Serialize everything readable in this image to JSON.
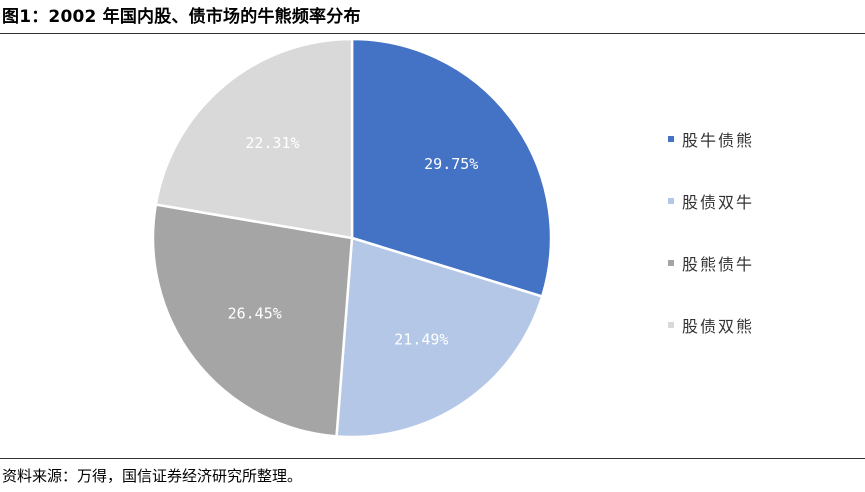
{
  "figure_title": "图1：2002 年国内股、债市场的牛熊频率分布",
  "source_note": "资料来源：万得，国信证券经济研究所整理。",
  "chart_data": {
    "type": "pie",
    "title": "",
    "slices": [
      {
        "name": "股牛债熊",
        "value": 29.75,
        "label": "29.75%",
        "color": "#4472C4",
        "label_color": "#ffffff"
      },
      {
        "name": "股债双牛",
        "value": 21.49,
        "label": "21.49%",
        "color": "#B4C7E7",
        "label_color": "#ffffff"
      },
      {
        "name": "股熊债牛",
        "value": 26.45,
        "label": "26.45%",
        "color": "#A5A5A5",
        "label_color": "#ffffff"
      },
      {
        "name": "股债双熊",
        "value": 22.31,
        "label": "22.31%",
        "color": "#D9D9D9",
        "label_color": "#ffffff"
      }
    ],
    "start_angle_deg": 0,
    "direction": "clockwise",
    "legend": {
      "position": "right",
      "entries": [
        "股牛债熊",
        "股债双牛",
        "股熊债牛",
        "股债双熊"
      ]
    }
  }
}
